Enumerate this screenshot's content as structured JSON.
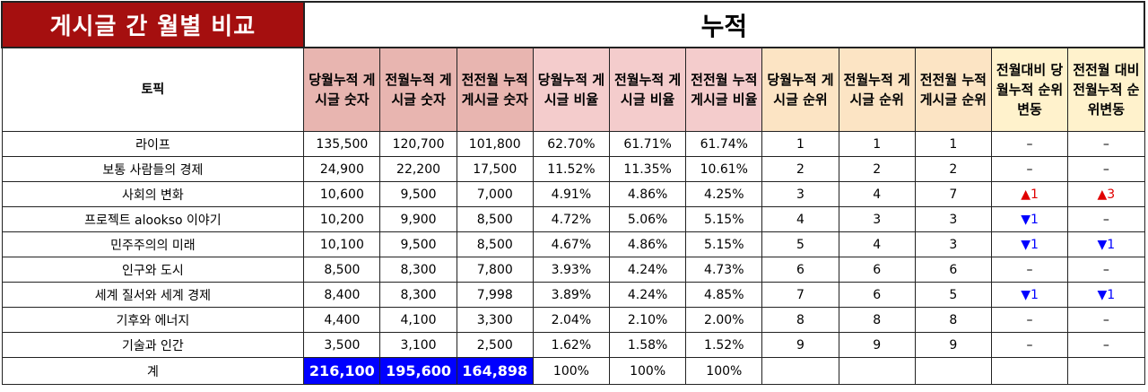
{
  "title": "게시글 간 월별 비교",
  "super_header": "누적",
  "columns": [
    "토픽",
    "당월누적 게시글 숫자",
    "전월누적 게시글 숫자",
    "전전월 누적 게시글 숫자",
    "당월누적 게시글 비율",
    "전월누적 게시글 비율",
    "전전월 누적 게시글 비율",
    "당월누적 게시글 순위",
    "전월누적 게시글 순위",
    "전전월 누적 게시글 순위",
    "전월대비 당월누적 순위변동",
    "전전월 대비 전월누적 순위변동"
  ],
  "rows": [
    [
      "라이프",
      "135,500",
      "120,700",
      "101,800",
      "62.70%",
      "61.71%",
      "61.74%",
      "1",
      "1",
      "1",
      "–",
      "–"
    ],
    [
      "보통 사람들의 경제",
      "24,900",
      "22,200",
      "17,500",
      "11.52%",
      "11.35%",
      "10.61%",
      "2",
      "2",
      "2",
      "–",
      "–"
    ],
    [
      "사회의 변화",
      "10,600",
      "9,500",
      "7,000",
      "4.91%",
      "4.86%",
      "4.25%",
      "3",
      "4",
      "7",
      "▲1",
      "▲3"
    ],
    [
      "프로젝트 alookso 이야기",
      "10,200",
      "9,900",
      "8,500",
      "4.72%",
      "5.06%",
      "5.15%",
      "4",
      "3",
      "3",
      "▼1",
      "–"
    ],
    [
      "민주주의의 미래",
      "10,100",
      "9,500",
      "8,500",
      "4.67%",
      "4.86%",
      "5.15%",
      "5",
      "4",
      "3",
      "▼1",
      "▼1"
    ],
    [
      "인구와 도시",
      "8,500",
      "8,300",
      "7,800",
      "3.93%",
      "4.24%",
      "4.73%",
      "6",
      "6",
      "6",
      "–",
      "–"
    ],
    [
      "세계 질서와 세계 경제",
      "8,400",
      "8,300",
      "7,998",
      "3.89%",
      "4.24%",
      "4.85%",
      "7",
      "6",
      "5",
      "▼1",
      "▼1"
    ],
    [
      "기후와 에너지",
      "4,400",
      "4,100",
      "3,300",
      "2.04%",
      "2.10%",
      "2.00%",
      "8",
      "8",
      "8",
      "–",
      "–"
    ],
    [
      "기술과 인간",
      "3,500",
      "3,100",
      "2,500",
      "1.62%",
      "1.58%",
      "1.52%",
      "9",
      "9",
      "9",
      "–",
      "–"
    ]
  ],
  "total": [
    "계",
    "216,100",
    "195,600",
    "164,898",
    "100%",
    "100%",
    "100%",
    "",
    "",
    "",
    "",
    ""
  ],
  "colors": {
    "title_bg": "#a50f0f",
    "header_pink_dark": "#e8b5b0",
    "header_pink_light": "#f4cccc",
    "header_peach": "#fce4c4",
    "header_yellow": "#fff2cc",
    "total_highlight": "#0000ff",
    "rank_up": "#e00000",
    "rank_down": "#0000ff"
  }
}
